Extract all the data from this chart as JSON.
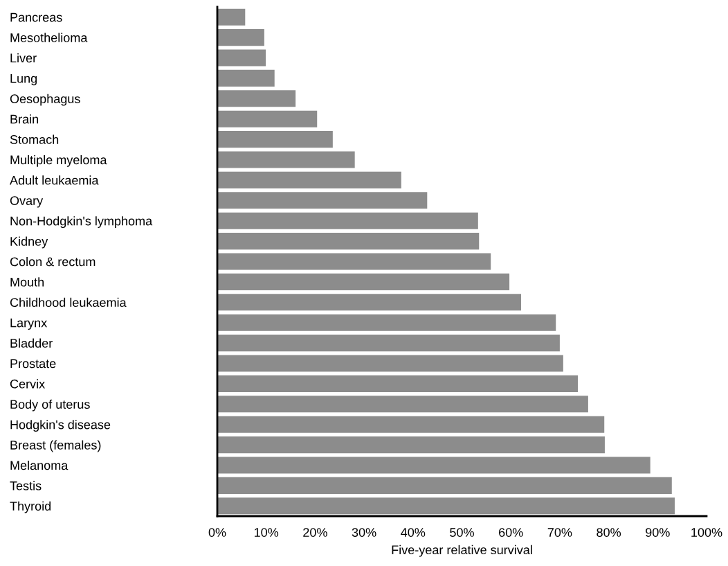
{
  "chart_data": {
    "type": "bar",
    "orientation": "horizontal",
    "xlabel": "Five-year relative survival",
    "categories": [
      "Pancreas",
      "Mesothelioma",
      "Liver",
      "Lung",
      "Oesophagus",
      "Brain",
      "Stomach",
      "Multiple myeloma",
      "Adult leukaemia",
      "Ovary",
      "Non-Hodgkin's lymphoma",
      "Kidney",
      "Colon & rectum",
      "Mouth",
      "Childhood leukaemia",
      "Larynx",
      "Bladder",
      "Prostate",
      "Cervix",
      "Body of uterus",
      "Hodgkin's disease",
      "Breast (females)",
      "Melanoma",
      "Testis",
      "Thyroid"
    ],
    "values": [
      5.7,
      9.6,
      9.9,
      11.7,
      16.0,
      20.4,
      23.6,
      28.1,
      37.6,
      42.9,
      53.3,
      53.5,
      55.9,
      59.7,
      62.1,
      69.2,
      70.0,
      70.7,
      73.7,
      75.8,
      79.1,
      79.2,
      88.5,
      92.9,
      93.5
    ],
    "color": "#8c8c8c",
    "xlim": [
      0,
      100
    ],
    "xticks": [
      {
        "value": 0,
        "label": "0%"
      },
      {
        "value": 10,
        "label": "10%"
      },
      {
        "value": 20,
        "label": "20%"
      },
      {
        "value": 30,
        "label": "30%"
      },
      {
        "value": 40,
        "label": "40%"
      },
      {
        "value": 50,
        "label": "50%"
      },
      {
        "value": 60,
        "label": "60%"
      },
      {
        "value": 70,
        "label": "70%"
      },
      {
        "value": 80,
        "label": "80%"
      },
      {
        "value": 90,
        "label": "90%"
      },
      {
        "value": 100,
        "label": "100%"
      }
    ],
    "grid": false,
    "legend": false
  }
}
